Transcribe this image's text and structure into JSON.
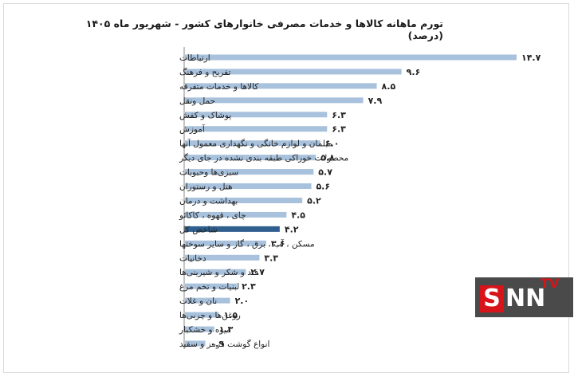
{
  "title": "تورم ماهانه کالاها و خدمات مصرفی خانوارهای کشور - شهریور ماه ۱۴۰۵ (درصد)",
  "colors": {
    "bar": "#a8c1dc",
    "highlight_bar": "#2f5f8e",
    "axis": "#8a8a8a"
  },
  "logo": {
    "s": "S",
    "nn": "NN",
    "tv": "TV"
  },
  "chart_data": {
    "type": "bar",
    "orientation": "horizontal",
    "title": "تورم ماهانه کالاها و خدمات مصرفی خانوارهای کشور - شهریور ماه ۱۴۰۵ (درصد)",
    "highlight_category": "شاخص کل",
    "categories": [
      "ارتباطات",
      "تفریح و فرهنگ",
      "کالاها و خدمات متفرقه",
      "حمل ونقل",
      "پوشاک و کفش",
      "آموزش",
      "مبلمان و لوازم خانگی و نگهداری معمول آنها",
      "محصولات خوراکی طبقه بندی نشده در جای دیگر",
      "سبزی‌ها وحبوبات",
      "هتل و رستوران",
      "بهداشت و درمان",
      "چای ، قهوه ، کاکائو",
      "شاخص کل",
      "مسکن ، آب ، برق ، گاز و سایر سوختها",
      "دخانیات",
      "قند و شکر و شیرینی‌ها",
      "لبنیات و تخم مرغ",
      "نان و غلات",
      "روغن‌ها و چربی‌ها",
      "میوه و خشکبار",
      "انواع گوشت قرمز و سفید"
    ],
    "values": [
      14.7,
      9.6,
      8.5,
      7.9,
      6.3,
      6.3,
      6.0,
      5.8,
      5.7,
      5.6,
      5.2,
      4.5,
      4.2,
      3.6,
      3.3,
      2.7,
      2.3,
      2.0,
      1.5,
      1.3,
      0.9
    ],
    "value_labels": [
      "۱۴.۷",
      "۹.۶",
      "۸.۵",
      "۷.۹",
      "۶.۳",
      "۶.۳",
      "۶.۰",
      "۵.۸",
      "۵.۷",
      "۵.۶",
      "۵.۲",
      "۴.۵",
      "۴.۲",
      "۳.۶",
      "۳.۳",
      "۲.۷",
      "۲.۳",
      "۲.۰",
      "۱.۵",
      "۱.۳",
      "۰.۹"
    ],
    "xlim": [
      0,
      16
    ],
    "grid": false,
    "legend": "none"
  }
}
